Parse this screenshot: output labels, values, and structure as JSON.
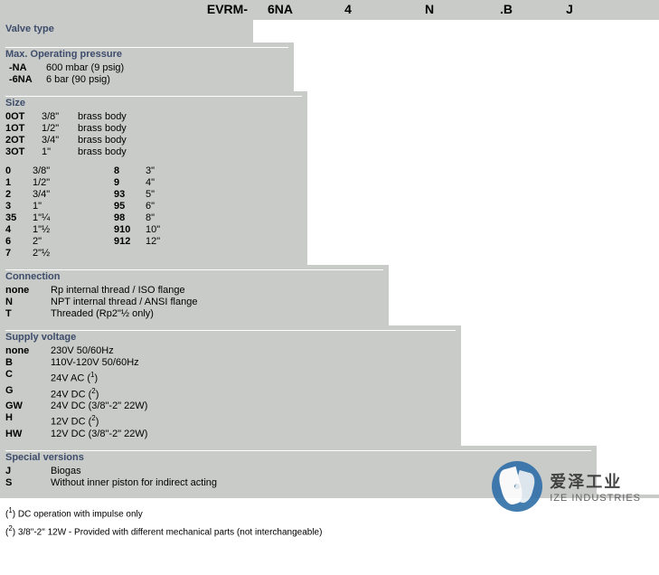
{
  "header": {
    "base": "EVRM-",
    "c1": "6NA",
    "c2": "4",
    "c3": "N",
    "c4": ".B",
    "c5": "J"
  },
  "sections": {
    "valvetype": {
      "title": "Valve type"
    },
    "pressure": {
      "title": "Max. Operating pressure",
      "rows": [
        {
          "code": "-NA",
          "desc": "600 mbar (9 psig)"
        },
        {
          "code": "-6NA",
          "desc": "6 bar (90 psig)"
        }
      ]
    },
    "size": {
      "title": "Size",
      "brass": [
        {
          "code": "0OT",
          "s": "3/8\"",
          "desc": "brass body"
        },
        {
          "code": "1OT",
          "s": "1/2\"",
          "desc": "brass body"
        },
        {
          "code": "2OT",
          "s": "3/4\"",
          "desc": "brass body"
        },
        {
          "code": "3OT",
          "s": "1\"",
          "desc": "brass body"
        }
      ],
      "left": [
        {
          "code": "0",
          "s": "3/8\""
        },
        {
          "code": "1",
          "s": "1/2\""
        },
        {
          "code": "2",
          "s": "3/4\""
        },
        {
          "code": "3",
          "s": "1\""
        },
        {
          "code": "35",
          "s": "1\"¼"
        },
        {
          "code": "4",
          "s": "1\"½"
        },
        {
          "code": "6",
          "s": "2\""
        },
        {
          "code": "7",
          "s": "2\"½"
        }
      ],
      "right": [
        {
          "code": "8",
          "s": "3\""
        },
        {
          "code": "9",
          "s": "4\""
        },
        {
          "code": "93",
          "s": "5\""
        },
        {
          "code": "95",
          "s": "6\""
        },
        {
          "code": "98",
          "s": "8\""
        },
        {
          "code": "910",
          "s": "10\""
        },
        {
          "code": "912",
          "s": "12\""
        }
      ]
    },
    "connection": {
      "title": "Connection",
      "rows": [
        {
          "code": "none",
          "desc": "Rp internal thread / ISO flange"
        },
        {
          "code": "N",
          "desc": "NPT internal thread / ANSI flange"
        },
        {
          "code": "T",
          "desc": "Threaded (Rp2\"½  only)"
        }
      ]
    },
    "voltage": {
      "title": "Supply voltage",
      "rows": [
        {
          "code": "none",
          "desc": "230V 50/60Hz",
          "note": ""
        },
        {
          "code": "B",
          "desc": "110V-120V 50/60Hz",
          "note": ""
        },
        {
          "code": "C",
          "desc": "24V AC (",
          "note": "1",
          "after": ")"
        },
        {
          "code": "G",
          "desc": "24V DC (",
          "note": "2",
          "after": ")"
        },
        {
          "code": "GW",
          "desc": "24V DC (3/8\"-2\" 22W)",
          "note": ""
        },
        {
          "code": "H",
          "desc": "12V DC (",
          "note": "2",
          "after": ")"
        },
        {
          "code": "HW",
          "desc": "12V DC (3/8\"-2\" 22W)",
          "note": ""
        }
      ]
    },
    "special": {
      "title": "Special versions",
      "rows": [
        {
          "code": "J",
          "desc": "Biogas"
        },
        {
          "code": "S",
          "desc": "Without inner piston for indirect acting"
        }
      ]
    }
  },
  "footnotes": {
    "n1_pre": "(",
    "n1_sup": "1",
    "n1": ") DC operation with impulse only",
    "n2_pre": "(",
    "n2_sup": "2",
    "n2": ") 3/8\"-2\" 12W - Provided with different mechanical parts (not interchangeable)"
  },
  "watermark": {
    "cn": "爱泽工业",
    "en": "IZE INDUSTRIES"
  },
  "colors": {
    "bg": "#c9cbc8",
    "title": "#3d4c6b",
    "wm_blue": "#2f6fa8"
  }
}
